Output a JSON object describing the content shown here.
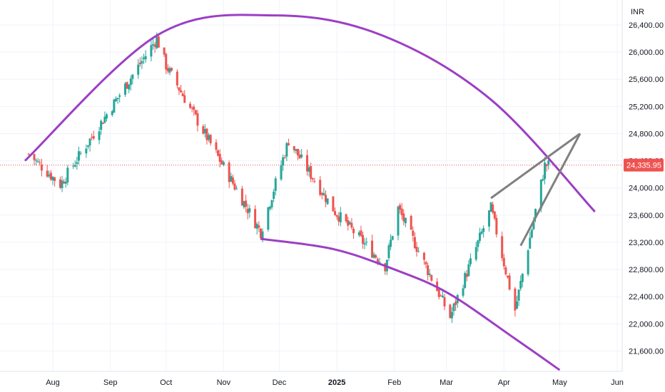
{
  "chart_data": {
    "type": "candlestick",
    "currency": "INR",
    "y_ticks": [
      21600,
      22000,
      22400,
      22800,
      23200,
      23600,
      24000,
      24400,
      24800,
      25200,
      25600,
      26000,
      26400
    ],
    "y_tick_labels": [
      "21,600.00",
      "22,000.00",
      "22,400.00",
      "22,800.00",
      "23,200.00",
      "23,600.00",
      "24,000.00",
      "24,400.00",
      "24,800.00",
      "25,200.00",
      "25,600.00",
      "26,000.00",
      "26,400.00"
    ],
    "ylim": [
      21300,
      26620
    ],
    "x_ticks": [
      {
        "label": "Aug",
        "date": "2024-08-01",
        "bold": false
      },
      {
        "label": "Sep",
        "date": "2024-09-01",
        "bold": false
      },
      {
        "label": "Oct",
        "date": "2024-10-01",
        "bold": false
      },
      {
        "label": "Nov",
        "date": "2024-11-01",
        "bold": false
      },
      {
        "label": "Dec",
        "date": "2024-12-01",
        "bold": false
      },
      {
        "label": "2025",
        "date": "2025-01-01",
        "bold": true
      },
      {
        "label": "Feb",
        "date": "2025-02-01",
        "bold": false
      },
      {
        "label": "Mar",
        "date": "2025-03-01",
        "bold": false
      },
      {
        "label": "Apr",
        "date": "2025-04-01",
        "bold": false
      },
      {
        "label": "May",
        "date": "2025-05-01",
        "bold": false
      },
      {
        "label": "Jun",
        "date": "2025-06-01",
        "bold": false
      }
    ],
    "last_price": 24335.95,
    "last_price_label": "24,335.95",
    "colors": {
      "up": "#26a69a",
      "down": "#ef5350",
      "arc": "#9c3fc4",
      "wedge": "#808080",
      "price_line": "#ef5350"
    },
    "key_closes": [
      {
        "date": "2024-07-19",
        "close": 24500
      },
      {
        "date": "2024-08-05",
        "close": 24050
      },
      {
        "date": "2024-09-26",
        "close": 26200
      },
      {
        "date": "2024-10-01",
        "close": 25800
      },
      {
        "date": "2024-11-21",
        "close": 23350
      },
      {
        "date": "2024-12-06",
        "close": 24700
      },
      {
        "date": "2024-12-31",
        "close": 23650
      },
      {
        "date": "2025-01-27",
        "close": 22850
      },
      {
        "date": "2025-02-03",
        "close": 23700
      },
      {
        "date": "2025-03-03",
        "close": 22100
      },
      {
        "date": "2025-03-25",
        "close": 23700
      },
      {
        "date": "2025-04-07",
        "close": 22200
      },
      {
        "date": "2025-04-23",
        "close": 24330
      },
      {
        "date": "2025-04-25",
        "close": 24336
      }
    ],
    "upper_arc": [
      {
        "date": "2024-07-17",
        "value": 24400
      },
      {
        "date": "2024-09-27",
        "value": 26260
      },
      {
        "date": "2024-11-29",
        "value": 26540
      },
      {
        "date": "2025-01-25",
        "value": 26250
      },
      {
        "date": "2025-03-25",
        "value": 25300
      },
      {
        "date": "2025-05-20",
        "value": 23650
      }
    ],
    "lower_arc": [
      {
        "date": "2024-11-21",
        "value": 23250
      },
      {
        "date": "2024-12-30",
        "value": 23100
      },
      {
        "date": "2025-02-01",
        "value": 22800
      },
      {
        "date": "2025-03-02",
        "value": 22450
      },
      {
        "date": "2025-04-07",
        "value": 21780
      },
      {
        "date": "2025-05-01",
        "value": 21320
      }
    ],
    "wedge": {
      "upper": [
        {
          "date": "2025-03-25",
          "value": 23850
        },
        {
          "date": "2025-05-12",
          "value": 24800
        }
      ],
      "lower": [
        {
          "date": "2025-04-10",
          "value": 23150
        },
        {
          "date": "2025-05-12",
          "value": 24800
        }
      ]
    }
  }
}
